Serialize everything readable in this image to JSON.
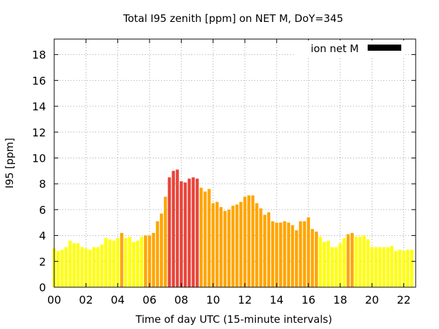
{
  "chart_data": {
    "type": "bar",
    "title": "Total I95 zenith [ppm] on NET M, DoY=345",
    "xlabel": "Time of day UTC (15-minute intervals)",
    "ylabel": "I95 [ppm]",
    "legend": {
      "label": "ion net M",
      "placement": "top-right",
      "color": "#000000"
    },
    "grid": true,
    "xlim": [
      0,
      22.75
    ],
    "ylim": [
      0,
      19.2
    ],
    "x_interval_hours": 0.25,
    "x_ticks": [
      {
        "value": 0,
        "label": "00"
      },
      {
        "value": 2,
        "label": "02"
      },
      {
        "value": 4,
        "label": "04"
      },
      {
        "value": 6,
        "label": "06"
      },
      {
        "value": 8,
        "label": "08"
      },
      {
        "value": 10,
        "label": "10"
      },
      {
        "value": 12,
        "label": "12"
      },
      {
        "value": 14,
        "label": "14"
      },
      {
        "value": 16,
        "label": "16"
      },
      {
        "value": 18,
        "label": "18"
      },
      {
        "value": 20,
        "label": "20"
      },
      {
        "value": 22,
        "label": "22"
      }
    ],
    "y_ticks": [
      {
        "value": 0,
        "label": "0"
      },
      {
        "value": 2,
        "label": "2"
      },
      {
        "value": 4,
        "label": "4"
      },
      {
        "value": 6,
        "label": "6"
      },
      {
        "value": 8,
        "label": "8"
      },
      {
        "value": 10,
        "label": "10"
      },
      {
        "value": 12,
        "label": "12"
      },
      {
        "value": 14,
        "label": "14"
      },
      {
        "value": 16,
        "label": "16"
      },
      {
        "value": 18,
        "label": "18"
      }
    ],
    "colors": {
      "low": "#ffff00",
      "mid": "#ffa500",
      "high": "#e8453c"
    },
    "values": [
      3.0,
      2.8,
      2.9,
      3.1,
      3.6,
      3.4,
      3.4,
      3.1,
      3.0,
      2.9,
      3.1,
      3.1,
      3.3,
      3.8,
      3.7,
      3.6,
      3.8,
      4.2,
      3.8,
      3.9,
      3.5,
      3.6,
      3.9,
      4.0,
      4.0,
      4.2,
      5.1,
      5.7,
      7.0,
      8.5,
      9.0,
      9.1,
      8.2,
      8.1,
      8.4,
      8.5,
      8.4,
      7.7,
      7.4,
      7.6,
      6.5,
      6.6,
      6.2,
      5.9,
      6.0,
      6.3,
      6.4,
      6.6,
      7.0,
      7.1,
      7.1,
      6.5,
      6.1,
      5.6,
      5.8,
      5.1,
      5.0,
      5.0,
      5.1,
      5.0,
      4.8,
      4.4,
      5.1,
      5.1,
      5.4,
      4.5,
      4.3,
      3.9,
      3.5,
      3.6,
      3.1,
      3.1,
      3.4,
      3.8,
      4.1,
      4.2,
      3.9,
      3.9,
      4.0,
      3.7,
      3.1,
      3.1,
      3.1,
      3.1,
      3.1,
      3.2,
      2.8,
      2.9,
      2.8,
      2.9,
      2.9
    ],
    "categories": [
      "low",
      "low",
      "low",
      "low",
      "low",
      "low",
      "low",
      "low",
      "low",
      "low",
      "low",
      "low",
      "low",
      "low",
      "low",
      "low",
      "low",
      "mid",
      "low",
      "low",
      "low",
      "low",
      "low",
      "mid",
      "mid",
      "mid",
      "mid",
      "mid",
      "mid",
      "high",
      "high",
      "high",
      "high",
      "high",
      "high",
      "high",
      "high",
      "mid",
      "mid",
      "mid",
      "mid",
      "mid",
      "mid",
      "mid",
      "mid",
      "mid",
      "mid",
      "mid",
      "mid",
      "mid",
      "mid",
      "mid",
      "mid",
      "mid",
      "mid",
      "mid",
      "mid",
      "mid",
      "mid",
      "mid",
      "mid",
      "mid",
      "mid",
      "mid",
      "mid",
      "mid",
      "mid",
      "low",
      "low",
      "low",
      "low",
      "low",
      "low",
      "low",
      "mid",
      "mid",
      "low",
      "low",
      "low",
      "low",
      "low",
      "low",
      "low",
      "low",
      "low",
      "low",
      "low",
      "low",
      "low",
      "low",
      "low"
    ]
  }
}
